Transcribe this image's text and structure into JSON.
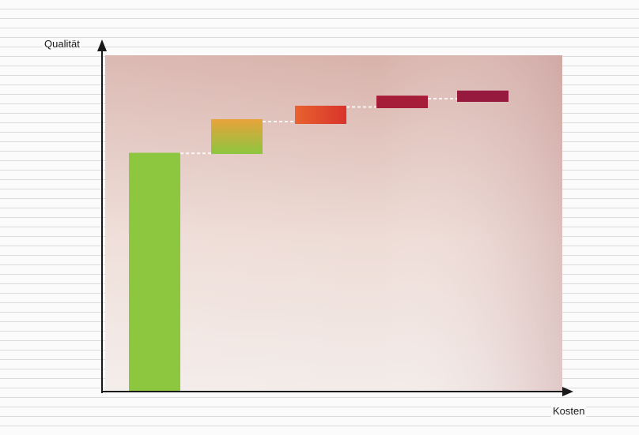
{
  "chart_data": {
    "type": "bar",
    "title": "",
    "xlabel": "Kosten",
    "ylabel": "Qualität",
    "grid": false,
    "legend": "none",
    "ylim": [
      0,
      100
    ],
    "xlim": [
      0,
      100
    ],
    "series": [
      {
        "values": [
          71,
          81,
          85,
          88,
          89.5
        ]
      }
    ],
    "colors": {
      "background_top_left": "#d8b2ab",
      "background_bottom": "#f3ece9",
      "background_right": "#d3aaa9",
      "bar_green": "#8dc63f",
      "bar_orange": "#e8a23a",
      "bar_red": "#e0452c",
      "bar_crimson": "#a61d3a",
      "bar_maroon": "#951a3e",
      "connector": "#ffffff",
      "axis": "#1a1a1a"
    }
  }
}
